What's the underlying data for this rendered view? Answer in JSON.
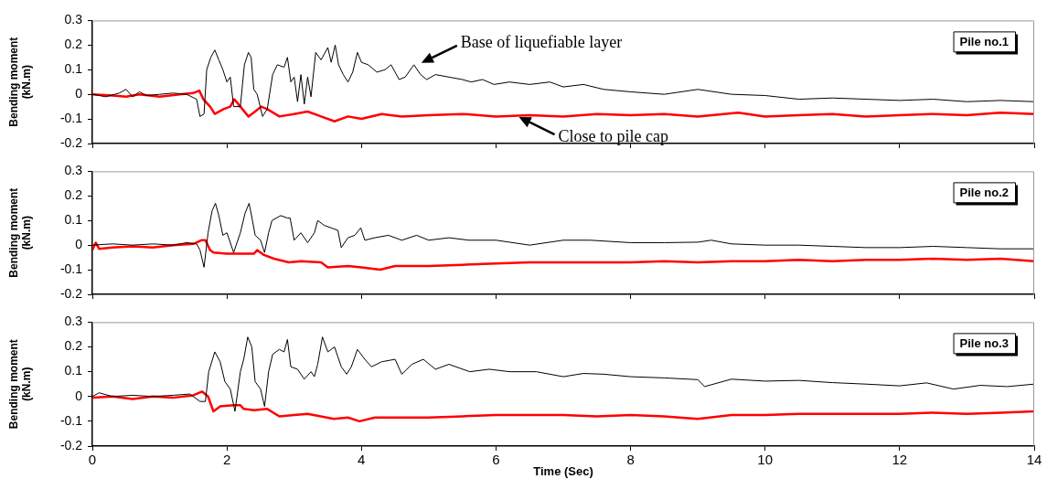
{
  "chart_data": [
    {
      "type": "line",
      "ylabel": "Bending moment (kN.m)",
      "xlim": [
        0,
        14
      ],
      "xticks": [
        0,
        2,
        4,
        6,
        8,
        10,
        12,
        14
      ],
      "ylim": [
        -0.2,
        0.3
      ],
      "yticks": [
        -0.2,
        -0.1,
        0,
        0.1,
        0.2,
        0.3
      ],
      "tick_labels": "y",
      "marker": "none",
      "line_style": "solid",
      "legend": false,
      "annotations": [
        {
          "text": "Base of liquefiable layer",
          "x": 4.85,
          "y": 0.12
        },
        {
          "text": "Close to pile cap",
          "x": 6.3,
          "y": -0.085
        },
        "Pile no.1"
      ],
      "series": [
        {
          "color": "#000000",
          "x": [
            0,
            0.2,
            0.4,
            0.5,
            0.6,
            0.7,
            0.8,
            1.0,
            1.2,
            1.4,
            1.55,
            1.6,
            1.66,
            1.7,
            1.76,
            1.82,
            1.88,
            1.94,
            2.0,
            2.05,
            2.1,
            2.2,
            2.26,
            2.32,
            2.36,
            2.4,
            2.45,
            2.53,
            2.6,
            2.68,
            2.75,
            2.85,
            2.9,
            2.95,
            3.0,
            3.05,
            3.1,
            3.15,
            3.2,
            3.25,
            3.32,
            3.4,
            3.5,
            3.55,
            3.61,
            3.66,
            3.73,
            3.8,
            3.87,
            3.94,
            4.0,
            4.1,
            4.23,
            4.35,
            4.44,
            4.56,
            4.65,
            4.78,
            4.88,
            4.97,
            5.1,
            5.3,
            5.5,
            5.63,
            5.8,
            5.97,
            6.2,
            6.5,
            6.8,
            7.0,
            7.3,
            7.6,
            8.0,
            8.5,
            9.0,
            9.5,
            10.0,
            10.5,
            11.0,
            11.5,
            12.0,
            12.5,
            13.0,
            13.5,
            14.0
          ],
          "values": [
            0,
            -0.01,
            0.005,
            0.02,
            -0.01,
            0.01,
            -0.005,
            0,
            0.005,
            0,
            -0.02,
            -0.09,
            -0.08,
            0.1,
            0.15,
            0.18,
            0.14,
            0.1,
            0.05,
            0.07,
            -0.05,
            -0.05,
            0.12,
            0.17,
            0.15,
            0.02,
            0,
            -0.09,
            -0.06,
            0.08,
            0.12,
            0.11,
            0.15,
            0.05,
            0.07,
            -0.03,
            0.08,
            -0.04,
            0.07,
            -0.01,
            0.17,
            0.14,
            0.19,
            0.13,
            0.2,
            0.12,
            0.08,
            0.05,
            0.09,
            0.17,
            0.13,
            0.12,
            0.09,
            0.1,
            0.12,
            0.06,
            0.07,
            0.12,
            0.08,
            0.06,
            0.08,
            0.07,
            0.06,
            0.05,
            0.06,
            0.04,
            0.05,
            0.04,
            0.05,
            0.03,
            0.04,
            0.02,
            0.01,
            0.0,
            0.02,
            0.0,
            -0.005,
            -0.02,
            -0.015,
            -0.02,
            -0.025,
            -0.02,
            -0.03,
            -0.025,
            -0.03
          ]
        },
        {
          "color": "#ff0000",
          "x": [
            0,
            0.3,
            0.5,
            0.7,
            1.0,
            1.3,
            1.5,
            1.59,
            1.65,
            1.75,
            1.82,
            1.95,
            2.05,
            2.11,
            2.2,
            2.32,
            2.42,
            2.51,
            2.6,
            2.78,
            3.0,
            3.2,
            3.4,
            3.6,
            3.8,
            4.0,
            4.3,
            4.6,
            5.0,
            5.5,
            6.0,
            6.5,
            7.0,
            7.5,
            8.0,
            8.5,
            9.0,
            9.6,
            10.0,
            10.5,
            11.0,
            11.5,
            12.0,
            12.5,
            13.0,
            13.5,
            14.0
          ],
          "values": [
            0,
            -0.005,
            -0.01,
            0,
            -0.01,
            0,
            0.005,
            0.015,
            -0.02,
            -0.05,
            -0.08,
            -0.06,
            -0.05,
            -0.02,
            -0.05,
            -0.09,
            -0.07,
            -0.05,
            -0.06,
            -0.09,
            -0.08,
            -0.07,
            -0.09,
            -0.11,
            -0.09,
            -0.1,
            -0.08,
            -0.09,
            -0.085,
            -0.08,
            -0.09,
            -0.085,
            -0.09,
            -0.08,
            -0.085,
            -0.08,
            -0.09,
            -0.075,
            -0.09,
            -0.085,
            -0.08,
            -0.09,
            -0.085,
            -0.08,
            -0.085,
            -0.075,
            -0.08
          ]
        }
      ]
    },
    {
      "type": "line",
      "ylabel": "Bending moment (kN.m)",
      "xlim": [
        0,
        14
      ],
      "xticks": [
        0,
        2,
        4,
        6,
        8,
        10,
        12,
        14
      ],
      "ylim": [
        -0.2,
        0.3
      ],
      "yticks": [
        -0.2,
        -0.1,
        0,
        0.1,
        0.2,
        0.3
      ],
      "tick_labels": "y",
      "marker": "none",
      "line_style": "solid",
      "legend": false,
      "annotations": [
        "Pile no.2"
      ],
      "series": [
        {
          "color": "#000000",
          "x": [
            0,
            0.3,
            0.6,
            0.9,
            1.2,
            1.4,
            1.55,
            1.6,
            1.66,
            1.72,
            1.78,
            1.83,
            1.88,
            1.94,
            2.0,
            2.1,
            2.2,
            2.27,
            2.33,
            2.38,
            2.42,
            2.5,
            2.56,
            2.62,
            2.67,
            2.8,
            2.9,
            2.94,
            3.0,
            3.1,
            3.2,
            3.3,
            3.35,
            3.45,
            3.55,
            3.65,
            3.7,
            3.8,
            3.9,
            3.99,
            4.05,
            4.2,
            4.4,
            4.6,
            4.82,
            5.0,
            5.3,
            5.6,
            6.0,
            6.5,
            7.0,
            7.4,
            8.0,
            8.5,
            9.0,
            9.2,
            9.5,
            10.0,
            10.5,
            11.0,
            11.5,
            12.0,
            12.5,
            13.0,
            13.5,
            14.0
          ],
          "values": [
            0,
            0.005,
            0,
            0.005,
            0,
            0.01,
            0.005,
            -0.02,
            -0.09,
            0.05,
            0.14,
            0.17,
            0.12,
            0.04,
            0.05,
            -0.03,
            0.05,
            0.13,
            0.17,
            0.1,
            0.04,
            0.02,
            -0.03,
            0.05,
            0.1,
            0.12,
            0.11,
            0.11,
            0.02,
            0.05,
            0.01,
            0.05,
            0.1,
            0.08,
            0.07,
            0.06,
            -0.01,
            0.03,
            0.04,
            0.07,
            0.02,
            0.03,
            0.04,
            0.02,
            0.04,
            0.02,
            0.03,
            0.02,
            0.02,
            0.0,
            0.02,
            0.02,
            0.01,
            0.01,
            0.012,
            0.02,
            0.005,
            0.0,
            0.0,
            -0.005,
            -0.01,
            -0.01,
            -0.005,
            -0.01,
            -0.015,
            -0.015
          ]
        },
        {
          "color": "#ff0000",
          "x": [
            0,
            0.05,
            0.1,
            0.3,
            0.6,
            0.9,
            1.2,
            1.5,
            1.62,
            1.68,
            1.75,
            1.8,
            2.0,
            2.2,
            2.4,
            2.45,
            2.55,
            2.7,
            2.92,
            3.1,
            3.4,
            3.5,
            3.8,
            4.0,
            4.28,
            4.5,
            5.0,
            5.5,
            6.0,
            6.5,
            7.0,
            7.5,
            8.0,
            8.5,
            9.0,
            9.5,
            10.0,
            10.5,
            11.0,
            11.5,
            12.0,
            12.5,
            13.0,
            13.5,
            14.0
          ],
          "values": [
            -0.02,
            0.01,
            -0.015,
            -0.01,
            -0.005,
            -0.01,
            0,
            0.005,
            0.02,
            0.02,
            -0.02,
            -0.03,
            -0.035,
            -0.035,
            -0.035,
            -0.02,
            -0.04,
            -0.055,
            -0.07,
            -0.065,
            -0.07,
            -0.09,
            -0.085,
            -0.09,
            -0.1,
            -0.085,
            -0.085,
            -0.08,
            -0.075,
            -0.07,
            -0.07,
            -0.07,
            -0.07,
            -0.065,
            -0.07,
            -0.065,
            -0.065,
            -0.06,
            -0.065,
            -0.06,
            -0.06,
            -0.055,
            -0.06,
            -0.055,
            -0.065
          ]
        }
      ]
    },
    {
      "type": "line",
      "xlabel": "Time (Sec)",
      "ylabel": "Bending moment (kN.m)",
      "xlim": [
        0,
        14
      ],
      "xticks": [
        0,
        2,
        4,
        6,
        8,
        10,
        12,
        14
      ],
      "ylim": [
        -0.2,
        0.3
      ],
      "yticks": [
        -0.2,
        -0.1,
        0,
        0.1,
        0.2,
        0.3
      ],
      "marker": "none",
      "line_style": "solid",
      "legend": false,
      "annotations": [
        "Pile no.3"
      ],
      "series": [
        {
          "color": "#000000",
          "x": [
            0,
            0.1,
            0.3,
            0.6,
            0.9,
            1.2,
            1.45,
            1.6,
            1.68,
            1.73,
            1.82,
            1.9,
            1.97,
            2.05,
            2.12,
            2.2,
            2.25,
            2.31,
            2.37,
            2.42,
            2.5,
            2.56,
            2.62,
            2.68,
            2.78,
            2.85,
            2.9,
            2.95,
            3.05,
            3.15,
            3.25,
            3.3,
            3.35,
            3.42,
            3.5,
            3.6,
            3.7,
            3.78,
            3.85,
            3.94,
            4.05,
            4.15,
            4.3,
            4.5,
            4.6,
            4.75,
            4.92,
            5.1,
            5.3,
            5.61,
            5.9,
            6.2,
            6.6,
            7.0,
            7.3,
            7.6,
            8.0,
            8.5,
            9.0,
            9.1,
            9.5,
            10.0,
            10.5,
            11.0,
            11.5,
            12.0,
            12.4,
            12.8,
            13.2,
            13.6,
            14.0
          ],
          "values": [
            0,
            0.015,
            0,
            0.005,
            0,
            0.005,
            0.01,
            -0.02,
            -0.02,
            0.1,
            0.18,
            0.14,
            0.06,
            0.03,
            -0.06,
            0.1,
            0.15,
            0.24,
            0.2,
            0.06,
            0.03,
            -0.04,
            0.1,
            0.17,
            0.19,
            0.18,
            0.23,
            0.12,
            0.11,
            0.07,
            0.1,
            0.08,
            0.13,
            0.24,
            0.18,
            0.2,
            0.12,
            0.09,
            0.12,
            0.19,
            0.15,
            0.12,
            0.14,
            0.15,
            0.09,
            0.13,
            0.15,
            0.11,
            0.13,
            0.1,
            0.11,
            0.1,
            0.1,
            0.08,
            0.093,
            0.09,
            0.08,
            0.075,
            0.068,
            0.04,
            0.07,
            0.062,
            0.065,
            0.056,
            0.05,
            0.043,
            0.055,
            0.03,
            0.045,
            0.04,
            0.05
          ]
        },
        {
          "color": "#ff0000",
          "x": [
            0,
            0.3,
            0.6,
            0.9,
            1.2,
            1.5,
            1.63,
            1.72,
            1.8,
            1.9,
            2.1,
            2.2,
            2.25,
            2.4,
            2.6,
            2.78,
            3.0,
            3.2,
            3.59,
            3.8,
            3.97,
            4.2,
            4.5,
            5.0,
            5.5,
            6.0,
            6.5,
            7.0,
            7.5,
            8.0,
            8.5,
            9.0,
            9.5,
            10.0,
            10.5,
            11.0,
            11.5,
            12.0,
            12.5,
            13.0,
            13.5,
            14.0
          ],
          "values": [
            -0.005,
            0,
            -0.01,
            0,
            -0.005,
            0.005,
            0.02,
            0,
            -0.06,
            -0.04,
            -0.035,
            -0.035,
            -0.05,
            -0.055,
            -0.05,
            -0.08,
            -0.075,
            -0.07,
            -0.09,
            -0.085,
            -0.1,
            -0.085,
            -0.085,
            -0.085,
            -0.08,
            -0.075,
            -0.075,
            -0.075,
            -0.08,
            -0.075,
            -0.08,
            -0.09,
            -0.075,
            -0.075,
            -0.07,
            -0.07,
            -0.07,
            -0.07,
            -0.065,
            -0.07,
            -0.065,
            -0.06
          ]
        }
      ]
    }
  ]
}
